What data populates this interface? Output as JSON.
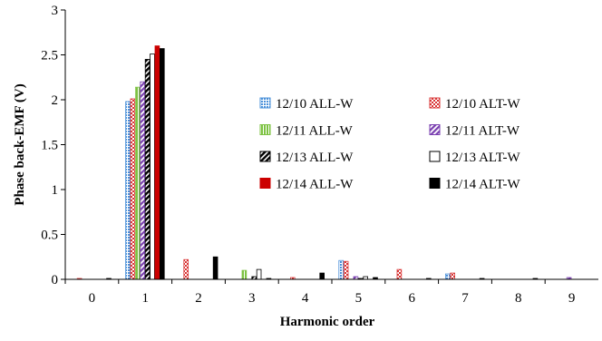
{
  "chart_data": {
    "type": "bar",
    "title": "",
    "xlabel": "Harmonic order",
    "ylabel": "Phase back-EMF (V)",
    "ylim": [
      0,
      3
    ],
    "yticks": [
      "0",
      "0.5",
      "1",
      "1.5",
      "2",
      "2.5",
      "3"
    ],
    "categories": [
      "0",
      "1",
      "2",
      "3",
      "4",
      "5",
      "6",
      "7",
      "8",
      "9"
    ],
    "grid": false,
    "legend_position": "right",
    "series": [
      {
        "name": "12/10 ALL-W",
        "pattern": "dotted",
        "color": "#4a90d9",
        "values": [
          0.0,
          1.98,
          0.0,
          0.0,
          0.0,
          0.21,
          0.0,
          0.06,
          0.0,
          0.0
        ]
      },
      {
        "name": "12/10 ALT-W",
        "pattern": "checker",
        "color": "#d93636",
        "values": [
          0.01,
          2.01,
          0.22,
          0.0,
          0.02,
          0.2,
          0.11,
          0.07,
          0.0,
          0.0
        ]
      },
      {
        "name": "12/11 ALL-W",
        "pattern": "vstripe",
        "color": "#7dc242",
        "values": [
          0.0,
          2.14,
          0.0,
          0.1,
          0.0,
          0.0,
          0.0,
          0.0,
          0.0,
          0.0
        ]
      },
      {
        "name": "12/11 ALT-W",
        "pattern": "diagonal",
        "color": "#7a3fb0",
        "values": [
          0.0,
          2.2,
          0.0,
          0.0,
          0.0,
          0.03,
          0.0,
          0.0,
          0.0,
          0.02
        ]
      },
      {
        "name": "12/13 ALL-W",
        "pattern": "diagonal-bold",
        "color": "#000000",
        "values": [
          0.0,
          2.45,
          0.0,
          0.03,
          0.0,
          0.01,
          0.0,
          0.0,
          0.0,
          0.0
        ]
      },
      {
        "name": "12/13 ALT-W",
        "pattern": "hollow",
        "color": "#000000",
        "values": [
          0.0,
          2.51,
          0.0,
          0.11,
          0.0,
          0.03,
          0.0,
          0.0,
          0.0,
          0.0
        ]
      },
      {
        "name": "12/14 ALL-W",
        "pattern": "solid",
        "color": "#cc0000",
        "values": [
          0.0,
          2.6,
          0.0,
          0.0,
          0.0,
          0.0,
          0.0,
          0.0,
          0.0,
          0.0
        ]
      },
      {
        "name": "12/14 ALT-W",
        "pattern": "solid",
        "color": "#000000",
        "values": [
          0.01,
          2.57,
          0.25,
          0.01,
          0.07,
          0.02,
          0.01,
          0.01,
          0.01,
          0.0
        ]
      }
    ]
  }
}
